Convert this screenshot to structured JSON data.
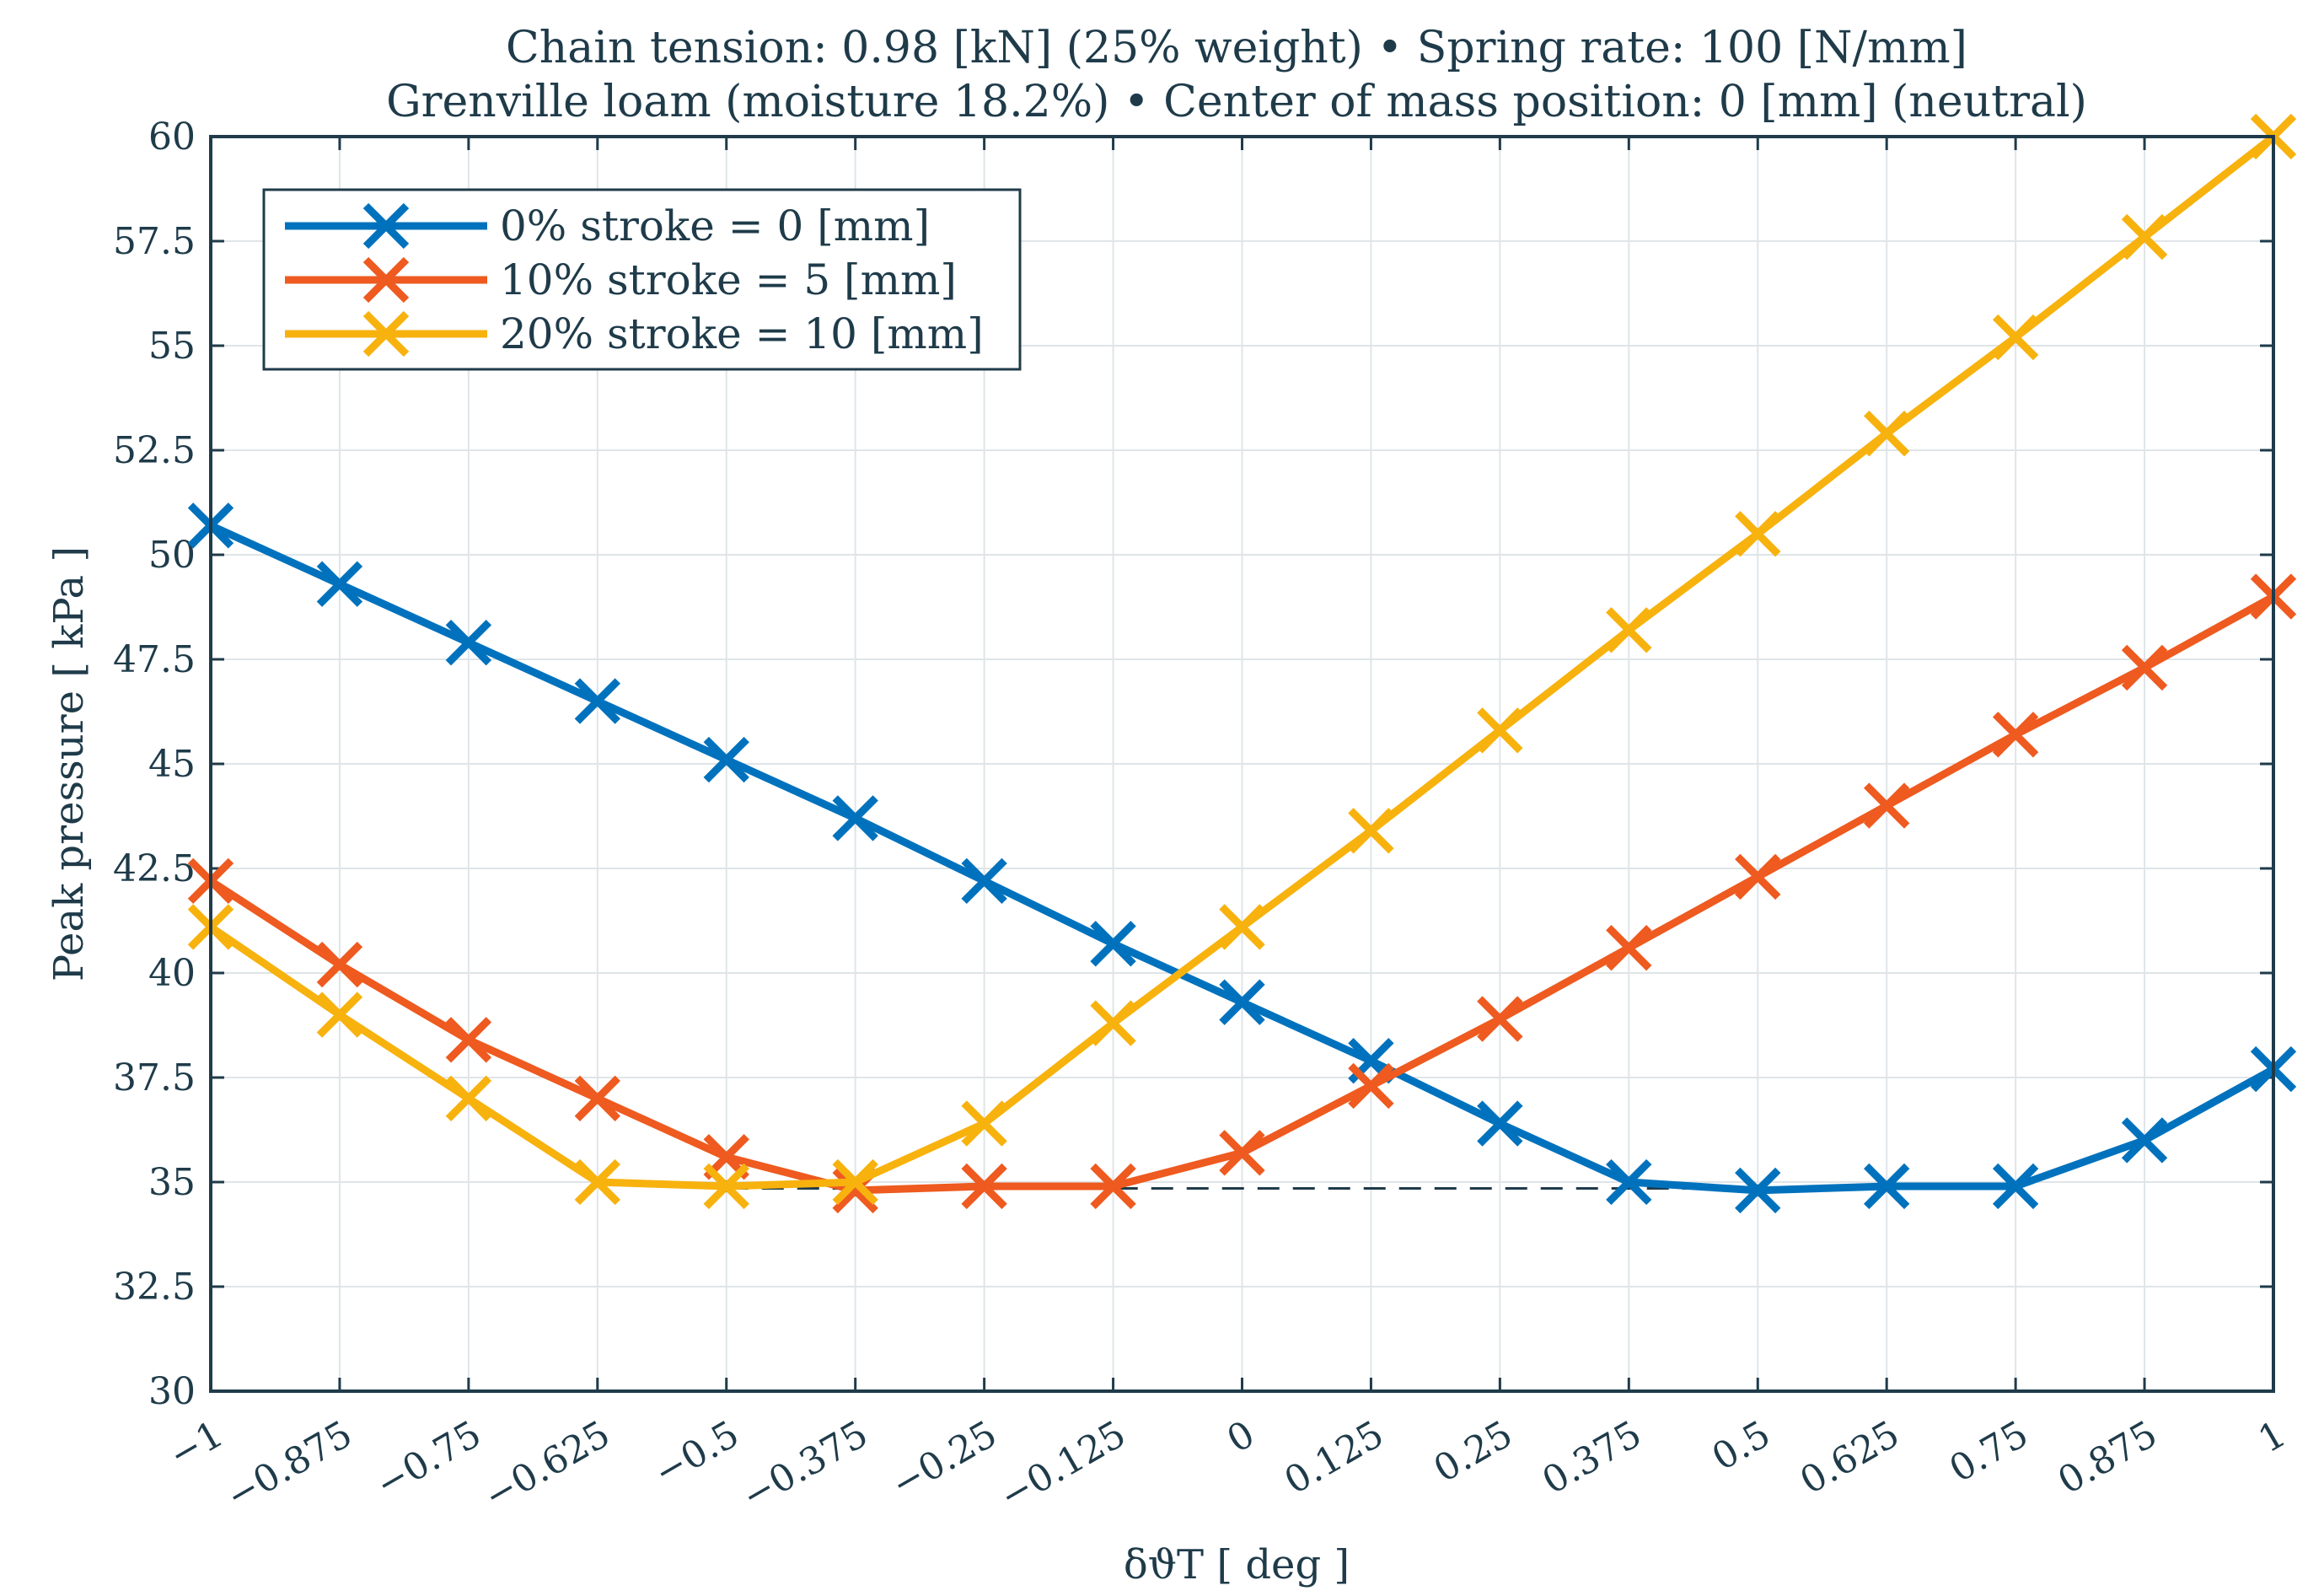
{
  "chart_data": {
    "type": "line",
    "title_lines": [
      "Chain tension: 0.98 [kN] (25% weight) • Spring rate: 100 [N/mm]",
      "Grenville loam (moisture 18.2%) • Center of mass position: 0 [mm] (neutral)"
    ],
    "xlabel": "δϑT [ deg ]",
    "ylabel": "Peak pressure [ kPa ]",
    "xlim": [
      -1,
      1
    ],
    "ylim": [
      30,
      60
    ],
    "grid": true,
    "legend_position": "top-left",
    "x_ticks": [
      -1,
      -0.875,
      -0.75,
      -0.625,
      -0.5,
      -0.375,
      -0.25,
      -0.125,
      0,
      0.125,
      0.25,
      0.375,
      0.5,
      0.625,
      0.75,
      0.875,
      1
    ],
    "x_tick_labels": [
      "−1",
      "−0.875",
      "−0.75",
      "−0.625",
      "−0.5",
      "−0.375",
      "−0.25",
      "−0.125",
      "0",
      "0.125",
      "0.25",
      "0.375",
      "0.5",
      "0.625",
      "0.75",
      "0.875",
      "1"
    ],
    "y_ticks": [
      30,
      32.5,
      35,
      37.5,
      40,
      42.5,
      45,
      47.5,
      50,
      52.5,
      55,
      57.5,
      60
    ],
    "y_tick_labels": [
      "30",
      "32.5",
      "35",
      "37.5",
      "40",
      "42.5",
      "45",
      "47.5",
      "50",
      "52.5",
      "55",
      "57.5",
      "60"
    ],
    "x": [
      -1,
      -0.875,
      -0.75,
      -0.625,
      -0.5,
      -0.375,
      -0.25,
      -0.125,
      0,
      0.125,
      0.25,
      0.375,
      0.5,
      0.625,
      0.75,
      0.875,
      1
    ],
    "series": [
      {
        "name": "0% stroke = 0 [mm]",
        "color": "#0072BD",
        "marker": "x",
        "values": [
          50.7,
          49.3,
          47.9,
          46.5,
          45.1,
          43.7,
          42.2,
          40.7,
          39.3,
          37.9,
          36.4,
          35.0,
          34.8,
          34.9,
          34.9,
          36.0,
          37.7
        ]
      },
      {
        "name": "10% stroke = 5 [mm]",
        "color": "#EE5A1F",
        "marker": "x",
        "values": [
          42.2,
          40.2,
          38.4,
          37.0,
          35.6,
          34.8,
          34.9,
          34.9,
          35.7,
          37.3,
          38.9,
          40.6,
          42.3,
          44.0,
          45.7,
          47.3,
          49.0
        ]
      },
      {
        "name": "20% stroke = 10 [mm]",
        "color": "#F7B20E",
        "marker": "x",
        "values": [
          41.1,
          39.0,
          37.0,
          35.0,
          34.9,
          35.0,
          36.4,
          38.8,
          41.1,
          43.4,
          45.8,
          48.2,
          50.5,
          52.9,
          55.2,
          57.6,
          60.0
        ]
      }
    ],
    "reference_line": {
      "style": "dashed",
      "color": "#1f3b4a",
      "y": 34.85,
      "x_range": [
        -0.5,
        0.5
      ],
      "minimum_points": [
        {
          "x": -0.5,
          "y": 34.9
        },
        {
          "x": -0.375,
          "y": 34.8
        },
        {
          "x": 0.5,
          "y": 34.8
        }
      ]
    }
  }
}
